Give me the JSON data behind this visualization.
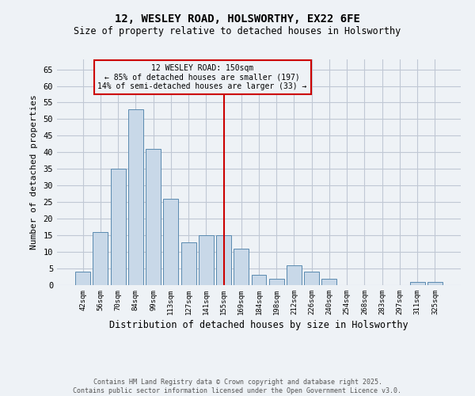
{
  "title1": "12, WESLEY ROAD, HOLSWORTHY, EX22 6FE",
  "title2": "Size of property relative to detached houses in Holsworthy",
  "xlabel": "Distribution of detached houses by size in Holsworthy",
  "ylabel": "Number of detached properties",
  "categories": [
    "42sqm",
    "56sqm",
    "70sqm",
    "84sqm",
    "99sqm",
    "113sqm",
    "127sqm",
    "141sqm",
    "155sqm",
    "169sqm",
    "184sqm",
    "198sqm",
    "212sqm",
    "226sqm",
    "240sqm",
    "254sqm",
    "268sqm",
    "283sqm",
    "297sqm",
    "311sqm",
    "325sqm"
  ],
  "values": [
    4,
    16,
    35,
    53,
    41,
    26,
    13,
    15,
    15,
    11,
    3,
    2,
    6,
    4,
    2,
    0,
    0,
    0,
    0,
    1,
    1
  ],
  "bar_color": "#c8d8e8",
  "bar_edge_color": "#5a8ab0",
  "vline_x": 8,
  "vline_color": "#cc0000",
  "ylim": [
    0,
    68
  ],
  "yticks": [
    0,
    5,
    10,
    15,
    20,
    25,
    30,
    35,
    40,
    45,
    50,
    55,
    60,
    65
  ],
  "annotation_title": "12 WESLEY ROAD: 150sqm",
  "annotation_line1": "← 85% of detached houses are smaller (197)",
  "annotation_line2": "14% of semi-detached houses are larger (33) →",
  "annotation_box_color": "#cc0000",
  "footer1": "Contains HM Land Registry data © Crown copyright and database right 2025.",
  "footer2": "Contains public sector information licensed under the Open Government Licence v3.0.",
  "bg_color": "#eef2f6",
  "grid_color": "#c0c8d4"
}
